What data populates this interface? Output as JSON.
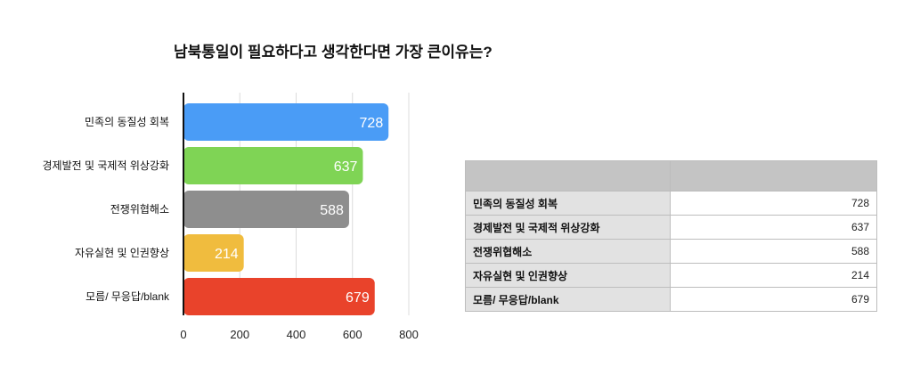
{
  "chart_data": {
    "type": "bar",
    "orientation": "horizontal",
    "title": "남북통일이 필요하다고 생각한다면 가장 큰이유는?",
    "categories": [
      "민족의 동질성 회복",
      "경제발전 및 국제적 위상강화",
      "전쟁위협해소",
      "자유실현 및 인권향상",
      "모름/ 무응답/blank"
    ],
    "values": [
      728,
      637,
      588,
      214,
      679
    ],
    "colors": [
      "#4a9cf6",
      "#7fd455",
      "#8e8e8e",
      "#f0bc3e",
      "#e9432b"
    ],
    "xlim": [
      0,
      800
    ],
    "xticks": [
      "0",
      "200",
      "400",
      "600",
      "800"
    ],
    "grid": true,
    "data_labels": true
  },
  "table": {
    "header": [
      "",
      ""
    ],
    "rows": [
      {
        "label": "민족의 동질성 회복",
        "value": "728"
      },
      {
        "label": "경제발전 및 국제적 위상강화",
        "value": "637"
      },
      {
        "label": "전쟁위협해소",
        "value": "588"
      },
      {
        "label": "자유실현 및 인권향상",
        "value": "214"
      },
      {
        "label": "모름/ 무응답/blank",
        "value": "679"
      }
    ]
  }
}
